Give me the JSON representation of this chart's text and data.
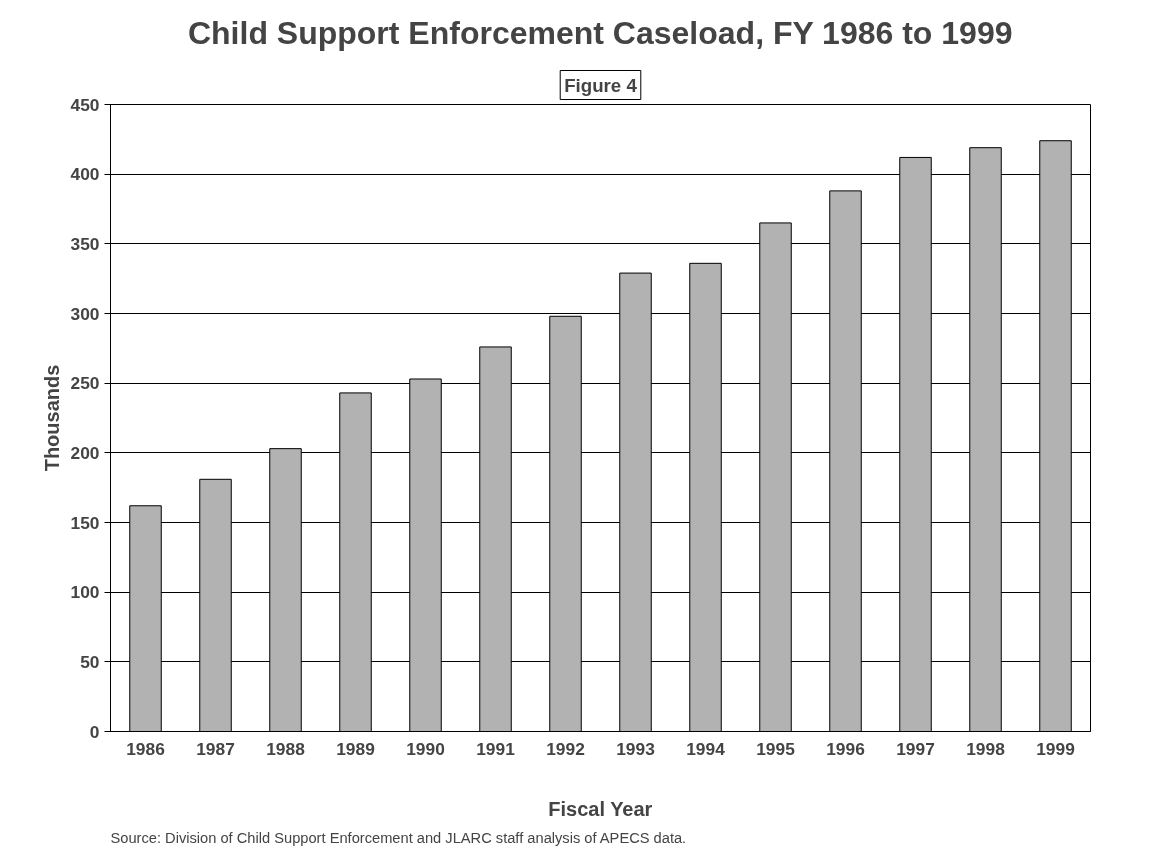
{
  "chart_data": {
    "type": "bar",
    "title": "Child Support Enforcement Caseload, FY 1986 to 1999",
    "xlabel": "Fiscal Year",
    "ylabel": "Thousands",
    "categories": [
      "1986",
      "1987",
      "1988",
      "1989",
      "1990",
      "1991",
      "1992",
      "1993",
      "1994",
      "1995",
      "1996",
      "1997",
      "1998",
      "1999"
    ],
    "values": [
      162,
      181,
      203,
      243,
      253,
      276,
      298,
      329,
      336,
      365,
      388,
      412,
      419,
      424
    ],
    "color": "#b2b2b2",
    "ylim": [
      0,
      450
    ],
    "yticks": [
      0,
      50,
      100,
      150,
      200,
      250,
      300,
      350,
      400,
      450
    ],
    "grid": "y",
    "annotations": [
      "Figure 4",
      "Source:  Division of Child Support Enforcement and JLARC staff analysis of APECS data."
    ]
  }
}
